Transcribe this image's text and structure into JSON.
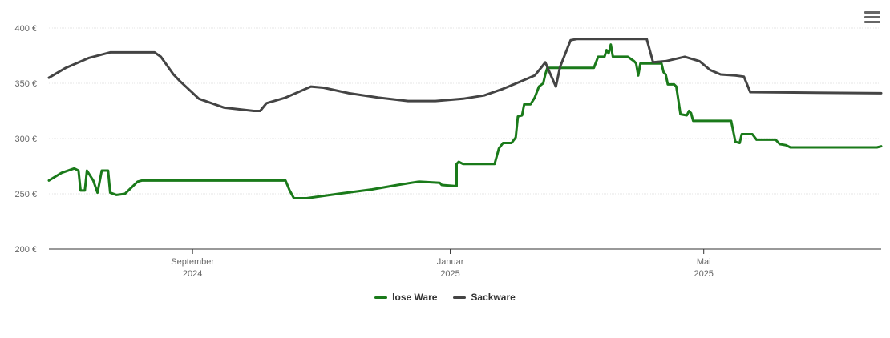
{
  "menu_icon": "hamburger-menu-icon",
  "chart_data": {
    "type": "line",
    "title": "",
    "xlabel": "",
    "ylabel": "",
    "ylim": [
      200,
      400
    ],
    "xlim": [
      "2024-06-25",
      "2025-07-24"
    ],
    "y_ticks": [
      {
        "value": 200,
        "label": "200 €"
      },
      {
        "value": 250,
        "label": "250 €"
      },
      {
        "value": 300,
        "label": "300 €"
      },
      {
        "value": 350,
        "label": "350 €"
      },
      {
        "value": 400,
        "label": "400 €"
      }
    ],
    "x_ticks": [
      {
        "date": "2024-09-01",
        "month": "September",
        "year": "2024"
      },
      {
        "date": "2025-01-01",
        "month": "Januar",
        "year": "2025"
      },
      {
        "date": "2025-05-01",
        "month": "Mai",
        "year": "2025"
      }
    ],
    "grid": true,
    "legend_position": "bottom-center",
    "series": [
      {
        "name": "lose Ware",
        "color": "#1a7a1a",
        "points": [
          [
            "2024-06-25",
            262
          ],
          [
            "2024-07-01",
            269
          ],
          [
            "2024-07-07",
            273
          ],
          [
            "2024-07-09",
            271
          ],
          [
            "2024-07-10",
            253
          ],
          [
            "2024-07-12",
            253
          ],
          [
            "2024-07-13",
            271
          ],
          [
            "2024-07-16",
            262
          ],
          [
            "2024-07-18",
            251
          ],
          [
            "2024-07-20",
            271
          ],
          [
            "2024-07-23",
            271
          ],
          [
            "2024-07-24",
            251
          ],
          [
            "2024-07-27",
            249
          ],
          [
            "2024-07-31",
            250
          ],
          [
            "2024-08-06",
            261
          ],
          [
            "2024-08-08",
            262
          ],
          [
            "2024-10-15",
            262
          ],
          [
            "2024-10-17",
            253
          ],
          [
            "2024-10-19",
            246
          ],
          [
            "2024-10-25",
            246
          ],
          [
            "2024-11-09",
            250
          ],
          [
            "2024-11-25",
            254
          ],
          [
            "2024-12-07",
            258
          ],
          [
            "2024-12-17",
            261
          ],
          [
            "2024-12-27",
            260
          ],
          [
            "2024-12-28",
            258
          ],
          [
            "2025-01-03",
            257
          ],
          [
            "2025-01-04",
            257
          ],
          [
            "2025-01-04",
            277
          ],
          [
            "2025-01-05",
            279
          ],
          [
            "2025-01-07",
            277
          ],
          [
            "2025-01-22",
            277
          ],
          [
            "2025-01-24",
            291
          ],
          [
            "2025-01-26",
            296
          ],
          [
            "2025-01-30",
            296
          ],
          [
            "2025-02-01",
            301
          ],
          [
            "2025-02-02",
            320
          ],
          [
            "2025-02-04",
            321
          ],
          [
            "2025-02-05",
            331
          ],
          [
            "2025-02-08",
            331
          ],
          [
            "2025-02-10",
            337
          ],
          [
            "2025-02-12",
            347
          ],
          [
            "2025-02-14",
            350
          ],
          [
            "2025-02-15",
            358
          ],
          [
            "2025-02-16",
            364
          ],
          [
            "2025-03-10",
            364
          ],
          [
            "2025-03-12",
            374
          ],
          [
            "2025-03-15",
            374
          ],
          [
            "2025-03-16",
            380
          ],
          [
            "2025-03-17",
            377
          ],
          [
            "2025-03-18",
            385
          ],
          [
            "2025-03-19",
            374
          ],
          [
            "2025-03-26",
            374
          ],
          [
            "2025-03-29",
            370
          ],
          [
            "2025-03-30",
            368
          ],
          [
            "2025-03-31",
            357
          ],
          [
            "2025-04-01",
            368
          ],
          [
            "2025-04-11",
            368
          ],
          [
            "2025-04-12",
            360
          ],
          [
            "2025-04-13",
            358
          ],
          [
            "2025-04-14",
            349
          ],
          [
            "2025-04-17",
            349
          ],
          [
            "2025-04-18",
            347
          ],
          [
            "2025-04-20",
            322
          ],
          [
            "2025-04-23",
            321
          ],
          [
            "2025-04-24",
            325
          ],
          [
            "2025-04-25",
            323
          ],
          [
            "2025-04-26",
            316
          ],
          [
            "2025-05-14",
            316
          ],
          [
            "2025-05-16",
            297
          ],
          [
            "2025-05-18",
            296
          ],
          [
            "2025-05-19",
            304
          ],
          [
            "2025-05-24",
            304
          ],
          [
            "2025-05-26",
            299
          ],
          [
            "2025-06-04",
            299
          ],
          [
            "2025-06-06",
            295
          ],
          [
            "2025-06-09",
            294
          ],
          [
            "2025-06-11",
            292
          ],
          [
            "2025-07-22",
            292
          ],
          [
            "2025-07-24",
            293
          ]
        ]
      },
      {
        "name": "Sackware",
        "color": "#444444",
        "points": [
          [
            "2024-06-25",
            355
          ],
          [
            "2024-07-03",
            364
          ],
          [
            "2024-07-14",
            373
          ],
          [
            "2024-07-24",
            378
          ],
          [
            "2024-08-14",
            378
          ],
          [
            "2024-08-17",
            374
          ],
          [
            "2024-08-23",
            358
          ],
          [
            "2024-08-26",
            352
          ],
          [
            "2024-09-04",
            336
          ],
          [
            "2024-09-16",
            328
          ],
          [
            "2024-09-30",
            325
          ],
          [
            "2024-10-03",
            325
          ],
          [
            "2024-10-06",
            332
          ],
          [
            "2024-10-15",
            337
          ],
          [
            "2024-10-21",
            342
          ],
          [
            "2024-10-27",
            347
          ],
          [
            "2024-11-02",
            346
          ],
          [
            "2024-11-14",
            341
          ],
          [
            "2024-11-28",
            337
          ],
          [
            "2024-12-12",
            334
          ],
          [
            "2024-12-25",
            334
          ],
          [
            "2025-01-07",
            336
          ],
          [
            "2025-01-17",
            339
          ],
          [
            "2025-01-26",
            345
          ],
          [
            "2025-02-05",
            353
          ],
          [
            "2025-02-10",
            357
          ],
          [
            "2025-02-13",
            364
          ],
          [
            "2025-02-15",
            369
          ],
          [
            "2025-02-17",
            360
          ],
          [
            "2025-02-20",
            347
          ],
          [
            "2025-02-22",
            365
          ],
          [
            "2025-02-27",
            389
          ],
          [
            "2025-03-02",
            390
          ],
          [
            "2025-04-04",
            390
          ],
          [
            "2025-04-07",
            369
          ],
          [
            "2025-04-13",
            370
          ],
          [
            "2025-04-22",
            374
          ],
          [
            "2025-04-29",
            370
          ],
          [
            "2025-05-04",
            362
          ],
          [
            "2025-05-09",
            358
          ],
          [
            "2025-05-16",
            357
          ],
          [
            "2025-05-20",
            356
          ],
          [
            "2025-05-23",
            342
          ],
          [
            "2025-07-24",
            341
          ]
        ]
      }
    ]
  }
}
